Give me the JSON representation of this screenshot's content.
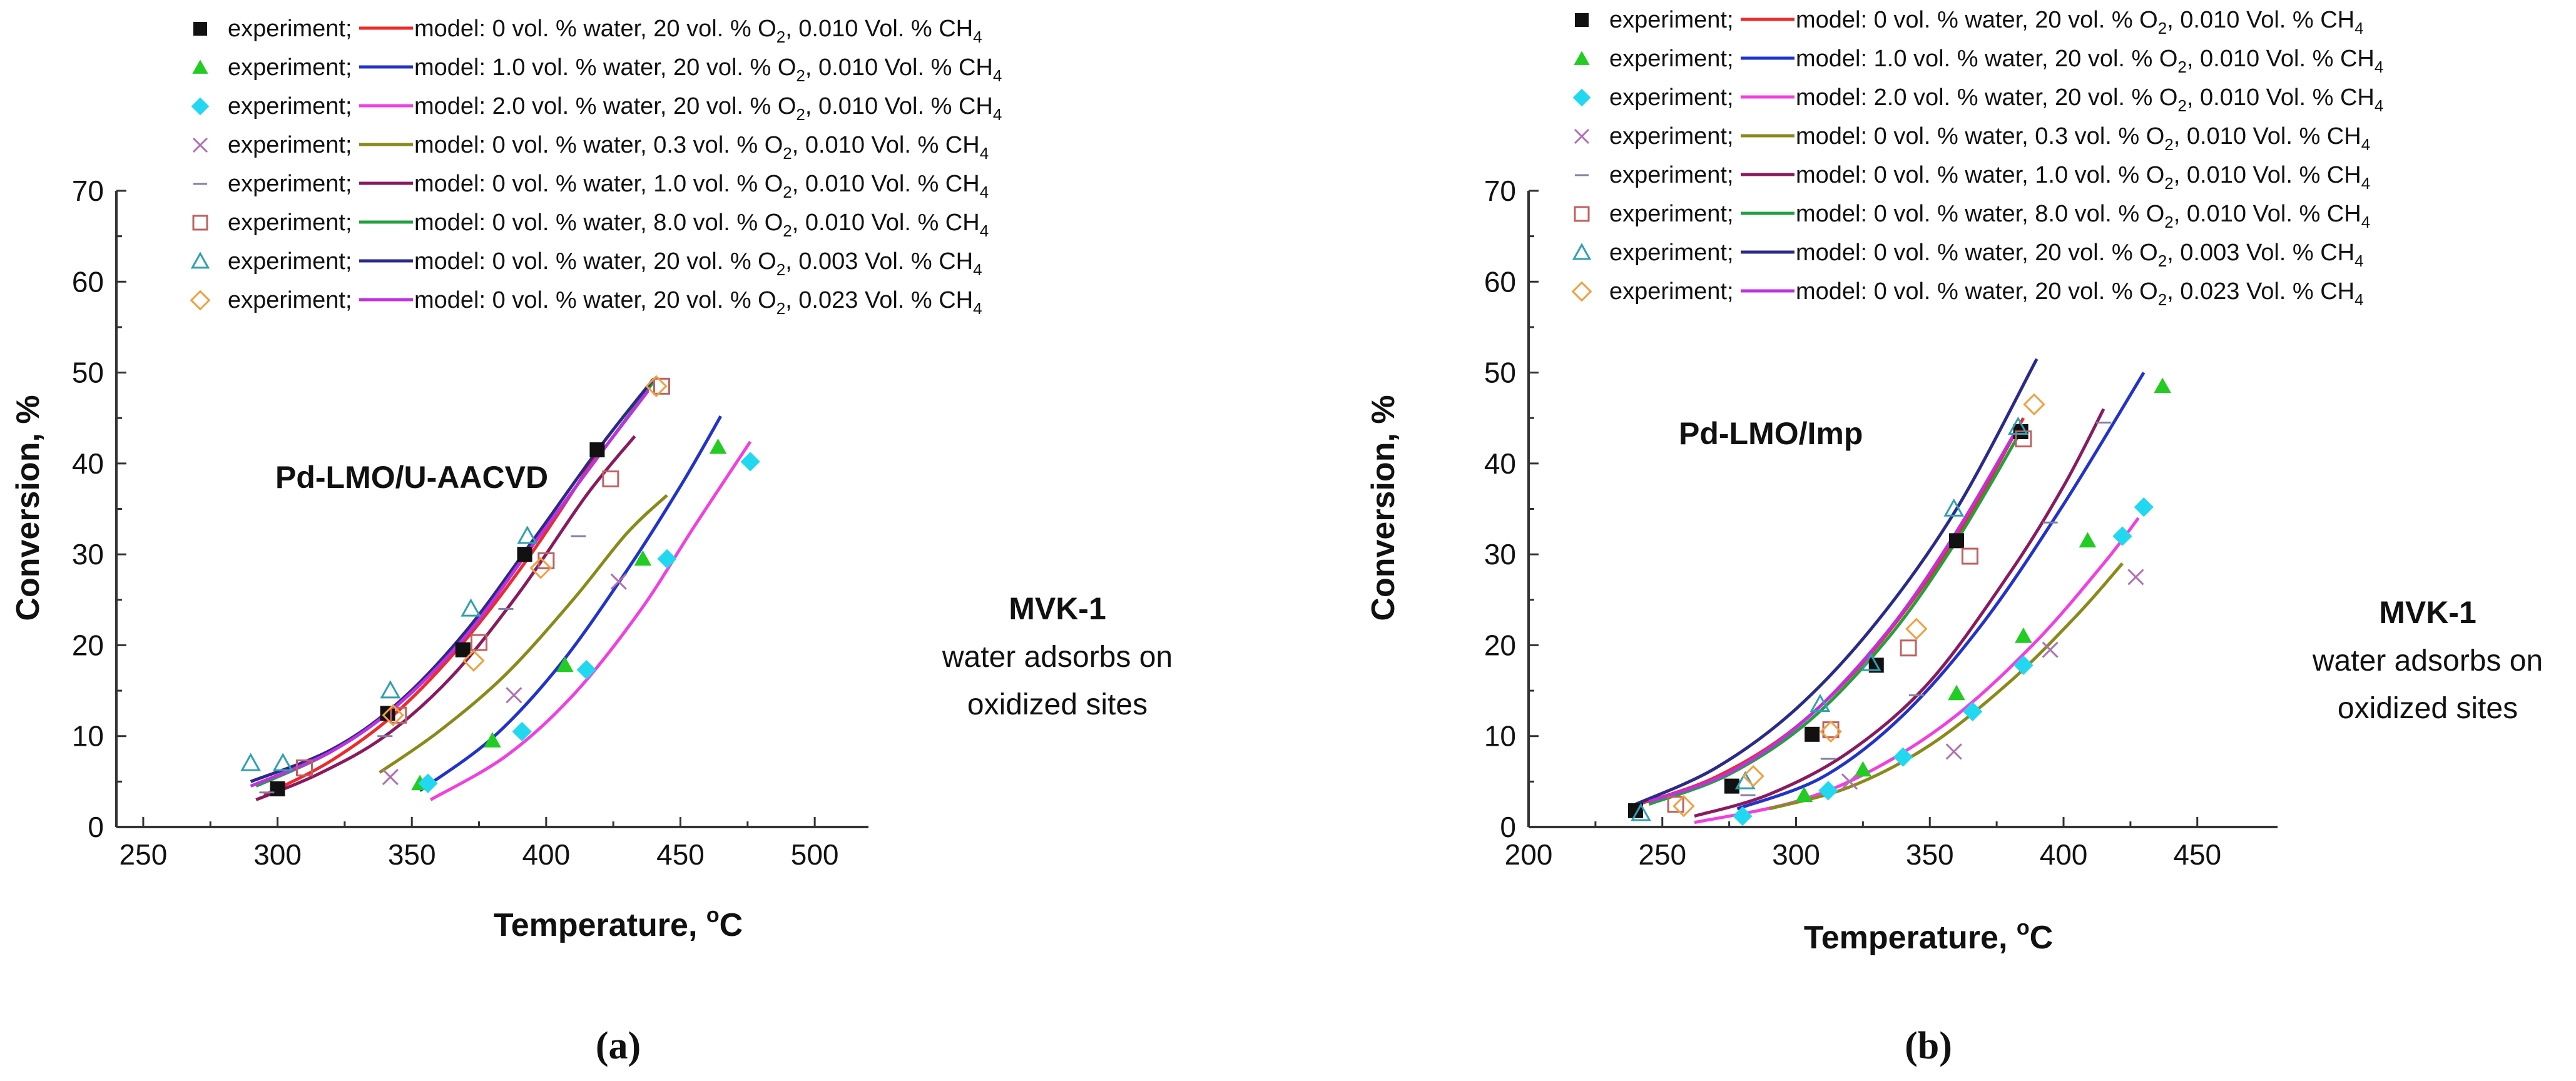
{
  "legend_template": {
    "exp_label": "experiment;",
    "model_prefix": "model: "
  },
  "legend_entries": [
    {
      "water": "0 vol. % water, ",
      "o2": "20 vol. % O",
      "ch4": ", 0.010 Vol. % CH",
      "marker": "square-filled",
      "marker_color": "#111111",
      "line_color": "#ee2a2a"
    },
    {
      "water": "1.0 vol. % water, ",
      "o2": "20 vol. % O",
      "ch4": ", 0.010 Vol. % CH",
      "marker": "triangle-filled",
      "marker_color": "#22cc22",
      "line_color": "#2233cc"
    },
    {
      "water": "2.0 vol. % water, ",
      "o2": "20 vol. % O",
      "ch4": ", 0.010 Vol. % CH",
      "marker": "diamond-filled",
      "marker_color": "#22d8f0",
      "line_color": "#f040e0"
    },
    {
      "water": "0 vol. % water, ",
      "o2": "0.3 vol. % O",
      "ch4": ", 0.010 Vol. % CH",
      "marker": "x",
      "marker_color": "#b070b0",
      "line_color": "#8a8a1a"
    },
    {
      "water": "0 vol. % water, ",
      "o2": "1.0 vol. % O",
      "ch4": ", 0.010 Vol. % CH",
      "marker": "dash",
      "marker_color": "#8080a0",
      "line_color": "#8a1a60"
    },
    {
      "water": "0 vol. % water, ",
      "o2": "8.0 vol. % O",
      "ch4": ", 0.010 Vol. % CH",
      "marker": "square-open",
      "marker_color": "#c06060",
      "line_color": "#22a040"
    },
    {
      "water": "0 vol. % water, ",
      "o2": "20 vol. % O",
      "ch4": ", 0.003 Vol. % CH",
      "marker": "triangle-open",
      "marker_color": "#30a0b0",
      "line_color": "#2a2a8a"
    },
    {
      "water": "0 vol. % water, ",
      "o2": "20 vol. % O",
      "ch4": ", 0.023 Vol. % CH",
      "marker": "diamond-open",
      "marker_color": "#f0a040",
      "line_color": "#c030e0"
    }
  ],
  "chart_data": [
    {
      "type": "scatter",
      "panel": "(a)",
      "catalyst_label": "Pd-LMO/U-AACVD",
      "mechanism_title": "MVK-1",
      "mechanism_note_1": "water adsorbs on",
      "mechanism_note_2": "oxidized sites",
      "xlabel": "Temperature, ",
      "xlabel_unit": "C",
      "ylabel": "Conversion, %",
      "xlim": [
        240,
        520
      ],
      "ylim": [
        0,
        70
      ],
      "xticks": [
        250,
        300,
        350,
        400,
        450,
        500
      ],
      "yticks": [
        0,
        10,
        20,
        30,
        40,
        50,
        60,
        70
      ],
      "series": [
        {
          "experiment": [
            [
              300,
              4.2
            ],
            [
              341,
              12.5
            ],
            [
              369,
              19.5
            ],
            [
              392,
              30
            ],
            [
              419,
              41.5
            ]
          ],
          "model": [
            [
              295,
              3.5
            ],
            [
              320,
              7.3
            ],
            [
              345,
              12.8
            ],
            [
              370,
              20.6
            ],
            [
              395,
              30.3
            ],
            [
              420,
              41.5
            ]
          ]
        },
        {
          "experiment": [
            [
              353,
              4.8
            ],
            [
              380,
              9.5
            ],
            [
              407,
              17.8
            ],
            [
              436,
              29.5
            ],
            [
              464,
              41.8
            ]
          ],
          "model": [
            [
              353,
              4.0
            ],
            [
              380,
              9.8
            ],
            [
              405,
              17.8
            ],
            [
              430,
              28.2
            ],
            [
              450,
              37.5
            ],
            [
              465,
              45.2
            ]
          ]
        },
        {
          "experiment": [
            [
              356,
              4.8
            ],
            [
              391,
              10.5
            ],
            [
              415,
              17.3
            ],
            [
              445,
              29.5
            ],
            [
              476,
              40.2
            ]
          ],
          "model": [
            [
              357,
              3.0
            ],
            [
              385,
              7.8
            ],
            [
              410,
              14.5
            ],
            [
              435,
              23.8
            ],
            [
              455,
              33
            ],
            [
              476,
              42.4
            ]
          ]
        },
        {
          "experiment": [
            [
              342,
              5.5
            ],
            [
              388,
              14.5
            ],
            [
              427,
              27
            ]
          ],
          "model": [
            [
              338,
              6.0
            ],
            [
              360,
              10.5
            ],
            [
              385,
              16.8
            ],
            [
              410,
              25
            ],
            [
              430,
              32.3
            ],
            [
              445,
              36.5
            ]
          ]
        },
        {
          "experiment": [
            [
              296,
              3.8
            ],
            [
              340,
              10
            ],
            [
              385,
              24
            ],
            [
              412,
              32
            ]
          ],
          "model": [
            [
              292,
              3.0
            ],
            [
              315,
              5.8
            ],
            [
              340,
              10
            ],
            [
              365,
              16.6
            ],
            [
              390,
              25.8
            ],
            [
              415,
              36.5
            ],
            [
              433,
              43
            ]
          ]
        },
        {
          "experiment": [
            [
              310,
              6.5
            ],
            [
              345,
              12.3
            ],
            [
              375,
              20.3
            ],
            [
              400,
              29.3
            ],
            [
              424,
              38.3
            ],
            [
              443,
              48.5
            ]
          ],
          "model": [
            [
              292,
              4.5
            ],
            [
              320,
              8.3
            ],
            [
              345,
              13.5
            ],
            [
              370,
              21
            ],
            [
              395,
              31
            ],
            [
              420,
              41
            ],
            [
              440,
              49
            ]
          ]
        },
        {
          "experiment": [
            [
              290,
              7
            ],
            [
              302,
              7
            ],
            [
              342,
              15
            ],
            [
              372,
              24
            ],
            [
              393,
              32
            ]
          ],
          "model": [
            [
              290,
              5.0
            ],
            [
              320,
              8.5
            ],
            [
              345,
              13.7
            ],
            [
              370,
              21.5
            ],
            [
              395,
              31.5
            ],
            [
              420,
              41.8
            ],
            [
              440,
              49.3
            ]
          ]
        },
        {
          "experiment": [
            [
              343,
              12.3
            ],
            [
              373,
              18.3
            ],
            [
              398,
              28.5
            ],
            [
              441,
              48.5
            ]
          ],
          "model": [
            [
              290,
              4.5
            ],
            [
              320,
              8.3
            ],
            [
              345,
              13.5
            ],
            [
              370,
              21
            ],
            [
              395,
              31
            ],
            [
              420,
              41
            ],
            [
              438,
              48
            ]
          ]
        }
      ]
    },
    {
      "type": "scatter",
      "panel": "(b)",
      "catalyst_label": "Pd-LMO/Imp",
      "mechanism_title": "MVK-1",
      "mechanism_note_1": "water adsorbs on",
      "mechanism_note_2": "oxidized sites",
      "xlabel": "Temperature, ",
      "xlabel_unit": "C",
      "ylabel": "Conversion, %",
      "xlim": [
        200,
        480
      ],
      "ylim": [
        0,
        70
      ],
      "xticks": [
        200,
        250,
        300,
        350,
        400,
        450
      ],
      "yticks": [
        0,
        10,
        20,
        30,
        40,
        50,
        60,
        70
      ],
      "series": [
        {
          "experiment": [
            [
              240,
              1.8
            ],
            [
              276,
              4.5
            ],
            [
              306,
              10.2
            ],
            [
              330,
              17.8
            ],
            [
              360,
              31.5
            ],
            [
              384,
              43.5
            ]
          ],
          "model": [
            [
              240,
              2.4
            ],
            [
              270,
              5.5
            ],
            [
              300,
              11
            ],
            [
              330,
              19.8
            ],
            [
              360,
              32
            ],
            [
              385,
              45
            ]
          ]
        },
        {
          "experiment": [
            [
              303,
              3.5
            ],
            [
              325,
              6.3
            ],
            [
              360,
              14.7
            ],
            [
              385,
              21
            ],
            [
              409,
              31.5
            ],
            [
              437,
              48.5
            ]
          ],
          "model": [
            [
              278,
              2.0
            ],
            [
              310,
              5.5
            ],
            [
              340,
              12.3
            ],
            [
              370,
              22.5
            ],
            [
              400,
              35.5
            ],
            [
              430,
              50
            ]
          ]
        },
        {
          "experiment": [
            [
              280,
              1.2
            ],
            [
              312,
              4
            ],
            [
              340,
              7.7
            ],
            [
              366,
              12.7
            ],
            [
              385,
              17.8
            ],
            [
              422,
              32
            ],
            [
              430,
              35.2
            ]
          ],
          "model": [
            [
              262,
              0.5
            ],
            [
              300,
              2.8
            ],
            [
              330,
              6.5
            ],
            [
              360,
              12.3
            ],
            [
              390,
              20.5
            ],
            [
              415,
              29
            ],
            [
              428,
              34
            ]
          ]
        },
        {
          "experiment": [
            [
              320,
              5
            ],
            [
              359,
              8.3
            ],
            [
              395,
              19.5
            ],
            [
              427,
              27.5
            ]
          ],
          "model": [
            [
              290,
              2.0
            ],
            [
              320,
              4.4
            ],
            [
              350,
              9
            ],
            [
              380,
              16
            ],
            [
              405,
              23.3
            ],
            [
              422,
              29
            ]
          ]
        },
        {
          "experiment": [
            [
              282,
              3.5
            ],
            [
              312,
              7.5
            ],
            [
              345,
              14.5
            ],
            [
              395,
              33.5
            ],
            [
              415,
              44.5
            ]
          ],
          "model": [
            [
              262,
              1.2
            ],
            [
              290,
              3.6
            ],
            [
              320,
              8.3
            ],
            [
              350,
              16
            ],
            [
              380,
              28
            ],
            [
              400,
              37.5
            ],
            [
              415,
              46
            ]
          ]
        },
        {
          "experiment": [
            [
              255,
              2.5
            ],
            [
              313,
              10.7
            ],
            [
              342,
              19.7
            ],
            [
              365,
              29.8
            ],
            [
              385,
              42.7
            ]
          ],
          "model": [
            [
              245,
              2.5
            ],
            [
              275,
              5.8
            ],
            [
              305,
              11.7
            ],
            [
              335,
              21
            ],
            [
              360,
              31.5
            ],
            [
              383,
              43
            ]
          ]
        },
        {
          "experiment": [
            [
              242,
              1.5
            ],
            [
              281,
              5
            ],
            [
              309,
              13.5
            ],
            [
              328,
              18
            ],
            [
              359,
              35
            ],
            [
              383,
              44
            ]
          ],
          "model": [
            [
              240,
              2.5
            ],
            [
              270,
              6.5
            ],
            [
              300,
              13
            ],
            [
              330,
              22.5
            ],
            [
              360,
              35
            ],
            [
              390,
              51.5
            ]
          ]
        },
        {
          "experiment": [
            [
              258,
              2.3
            ],
            [
              284,
              5.6
            ],
            [
              313,
              10.5
            ],
            [
              345,
              21.8
            ],
            [
              389,
              46.5
            ]
          ],
          "model": [
            [
              245,
              2.8
            ],
            [
              275,
              6
            ],
            [
              305,
              12.2
            ],
            [
              335,
              21.8
            ],
            [
              360,
              32.5
            ],
            [
              383,
              44
            ]
          ]
        }
      ]
    }
  ]
}
